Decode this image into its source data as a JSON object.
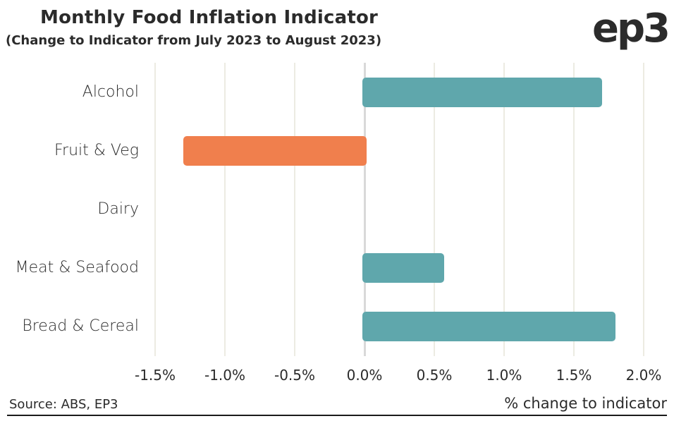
{
  "header": {
    "title": "Monthly Food Inflation Indicator",
    "subtitle": "(Change to Indicator from July 2023 to August 2023)",
    "logo": "ep3"
  },
  "footer": {
    "source": "Source: ABS, EP3",
    "axis_title": "% change to indicator"
  },
  "colors": {
    "positive_bar": "#5FA7AC",
    "negative_bar": "#F07F4D",
    "text": "#2B2B2B",
    "gridline": "#ECEBE2",
    "zero_line": "#D9D9D9",
    "background": "#FFFFFF",
    "bottom_rule": "#1A1A1A"
  },
  "chart_data": {
    "type": "bar",
    "orientation": "horizontal",
    "title": "Monthly Food Inflation Indicator",
    "subtitle": "(Change to Indicator from July 2023 to August 2023)",
    "categories": [
      "Alcohol",
      "Fruit & Veg",
      "Dairy",
      "Meat & Seafood",
      "Bread & Cereal"
    ],
    "values": [
      1.7,
      -1.3,
      0.0,
      0.57,
      1.8
    ],
    "bar_colors": [
      "#5FA7AC",
      "#F07F4D",
      null,
      "#5FA7AC",
      "#5FA7AC"
    ],
    "xlabel": "% change to indicator",
    "ylabel": "",
    "xlim": [
      -1.5,
      2.0
    ],
    "xticks": [
      "-1.5%",
      "-1.0%",
      "-0.5%",
      "0.0%",
      "0.5%",
      "1.0%",
      "1.5%",
      "2.0%"
    ],
    "xtick_values": [
      -1.5,
      -1.0,
      -0.5,
      0.0,
      0.5,
      1.0,
      1.5,
      2.0
    ],
    "grid": true,
    "legend": false,
    "source": "Source: ABS, EP3"
  }
}
